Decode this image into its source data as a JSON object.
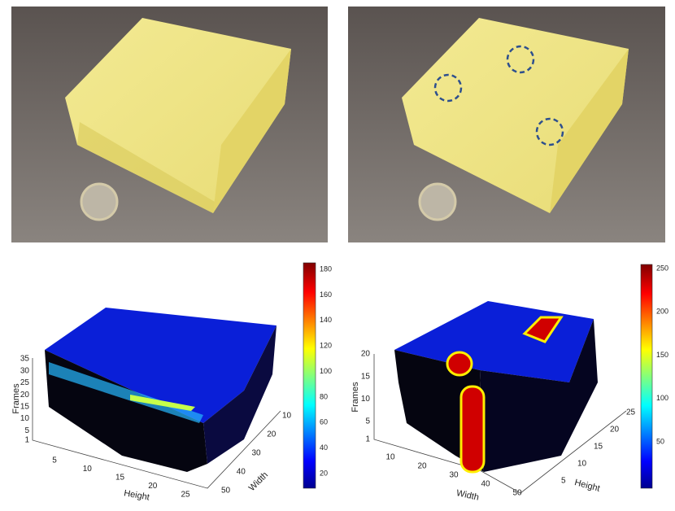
{
  "plots": [
    {
      "z_label": "Frames",
      "z_ticks": [
        1,
        5,
        10,
        15,
        20,
        25,
        30,
        35
      ],
      "x_label": "Height",
      "x_ticks": [
        5,
        10,
        15,
        20,
        25
      ],
      "y_label": "Width",
      "y_ticks": [
        10,
        20,
        30,
        40,
        50
      ],
      "colorbar_ticks": [
        20,
        40,
        60,
        80,
        100,
        120,
        140,
        160,
        180
      ]
    },
    {
      "z_label": "Frames",
      "z_ticks": [
        1,
        5,
        10,
        15,
        20
      ],
      "x_label": "Width",
      "x_ticks": [
        10,
        20,
        30,
        40,
        50
      ],
      "y_label": "Height",
      "y_ticks": [
        5,
        10,
        15,
        20,
        25
      ],
      "colorbar_ticks": [
        50,
        100,
        150,
        200,
        250
      ]
    }
  ]
}
